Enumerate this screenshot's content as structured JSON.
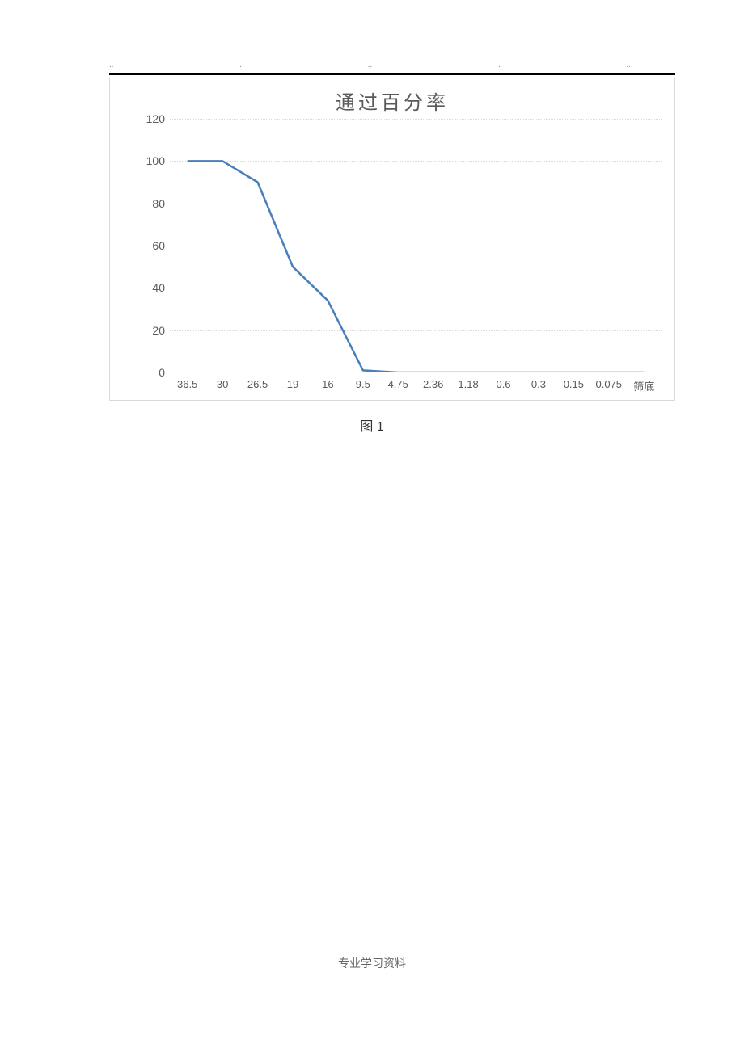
{
  "header": {
    "dots": [
      "..",
      ".",
      "..",
      ".",
      ".."
    ]
  },
  "chart": {
    "type": "line",
    "title": "通过百分率",
    "title_fontsize": 24,
    "title_color": "#595959",
    "categories": [
      "36.5",
      "30",
      "26.5",
      "19",
      "16",
      "9.5",
      "4.75",
      "2.36",
      "1.18",
      "0.6",
      "0.3",
      "0.15",
      "0.075",
      "筛底"
    ],
    "values": [
      100,
      100,
      90,
      50,
      34,
      1,
      0,
      0,
      0,
      0,
      0,
      0,
      0,
      0
    ],
    "line_color": "#4a7ebb",
    "line_width": 2.5,
    "marker_style": "none",
    "ylim": [
      0,
      120
    ],
    "ytick_step": 20,
    "yticks": [
      0,
      20,
      40,
      60,
      80,
      100,
      120
    ],
    "label_fontsize": 14,
    "label_color": "#595959",
    "background_color": "#ffffff",
    "grid_color": "#d9d9d9",
    "grid_style": "dotted",
    "axis_color": "#bfbfbf",
    "border_color": "#d9d9d9"
  },
  "caption": "图 1",
  "footer": {
    "text": "专业学习资料",
    "dot_l": ".",
    "dot_r": "."
  }
}
